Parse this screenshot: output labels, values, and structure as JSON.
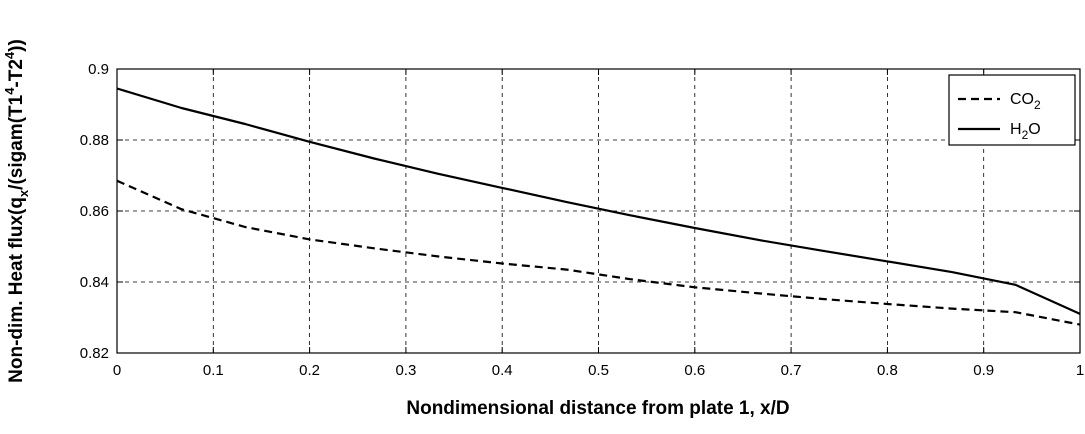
{
  "chart_data": {
    "type": "line",
    "title": "",
    "xlabel": "Nondimensional distance from plate 1, x/D",
    "ylabel": {
      "parts": [
        {
          "text": "Non-dim. Heat flux(q",
          "shift": "base"
        },
        {
          "text": "x",
          "shift": "sub"
        },
        {
          "text": "/(sigam(T1",
          "shift": "base"
        },
        {
          "text": "4",
          "shift": "super"
        },
        {
          "text": "-T2",
          "shift": "base"
        },
        {
          "text": "4",
          "shift": "super"
        },
        {
          "text": "))",
          "shift": "base"
        }
      ]
    },
    "xlim": [
      0,
      1
    ],
    "ylim": [
      0.82,
      0.9
    ],
    "x_ticks": [
      "0",
      "0.1",
      "0.2",
      "0.3",
      "0.4",
      "0.5",
      "0.6",
      "0.7",
      "0.8",
      "0.9",
      "1"
    ],
    "x_tick_values": [
      0,
      0.1,
      0.2,
      0.3,
      0.4,
      0.5,
      0.6,
      0.7,
      0.8,
      0.9,
      1
    ],
    "y_ticks": [
      "0.82",
      "0.84",
      "0.86",
      "0.88",
      "0.9"
    ],
    "y_tick_values": [
      0.82,
      0.84,
      0.86,
      0.88,
      0.9
    ],
    "grid": true,
    "legend_position": "top-right",
    "series": [
      {
        "name": {
          "base": "CO",
          "sub": "2",
          "suffix": ""
        },
        "line_style": "dashed",
        "color": "#000000",
        "x": [
          0,
          0.067,
          0.133,
          0.2,
          0.267,
          0.333,
          0.4,
          0.467,
          0.533,
          0.6,
          0.667,
          0.733,
          0.8,
          0.867,
          0.933,
          1.0
        ],
        "y": [
          0.8685,
          0.8605,
          0.8555,
          0.852,
          0.8495,
          0.8472,
          0.8452,
          0.8435,
          0.8408,
          0.8385,
          0.8368,
          0.8352,
          0.8338,
          0.8325,
          0.8315,
          0.828
        ]
      },
      {
        "name": {
          "base": "H",
          "sub": "2",
          "suffix": "O"
        },
        "line_style": "solid",
        "color": "#000000",
        "x": [
          0,
          0.067,
          0.133,
          0.2,
          0.267,
          0.333,
          0.4,
          0.467,
          0.533,
          0.6,
          0.667,
          0.733,
          0.8,
          0.867,
          0.933,
          1.0
        ],
        "y": [
          0.8945,
          0.889,
          0.8845,
          0.8795,
          0.8748,
          0.8705,
          0.8665,
          0.8625,
          0.8588,
          0.8552,
          0.8518,
          0.8488,
          0.8458,
          0.8428,
          0.8392,
          0.831
        ]
      }
    ]
  }
}
